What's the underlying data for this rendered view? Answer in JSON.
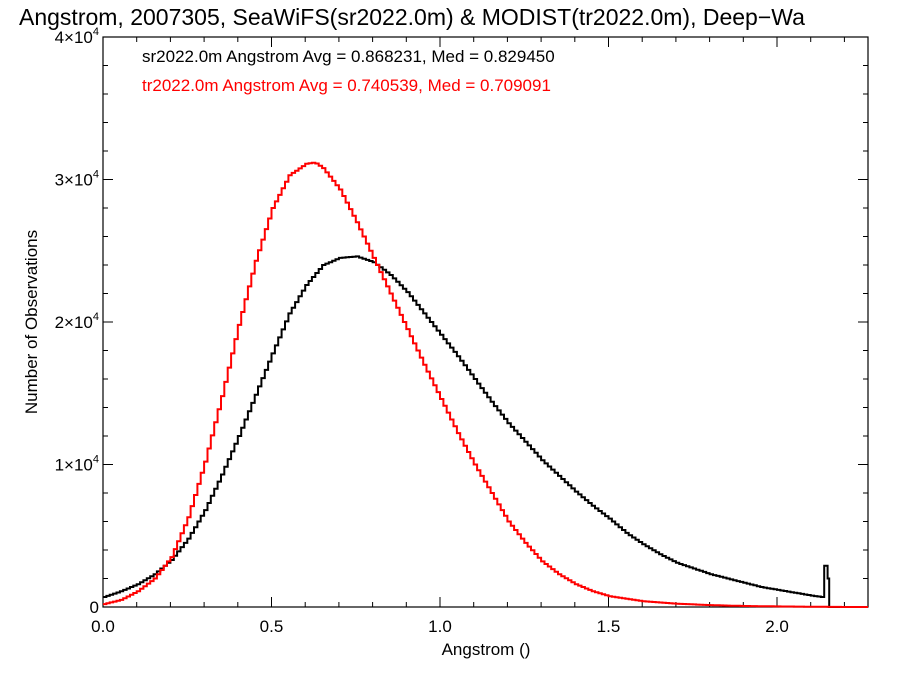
{
  "chart_data": {
    "type": "step",
    "title": "Angstrom, 2007305, SeaWiFS(sr2022.0m) & MODIST(tr2022.0m), Deep−Wa",
    "xlabel": "Angstrom ()",
    "ylabel": "Number of Observations",
    "xlim": [
      0.0,
      2.27
    ],
    "ylim": [
      0,
      40000
    ],
    "x_ticks": [
      {
        "value": 0.0,
        "label": "0.0"
      },
      {
        "value": 0.5,
        "label": "0.5"
      },
      {
        "value": 1.0,
        "label": "1.0"
      },
      {
        "value": 1.5,
        "label": "1.5"
      },
      {
        "value": 2.0,
        "label": "2.0"
      }
    ],
    "y_ticks": [
      {
        "value": 0,
        "base": "0",
        "exp": ""
      },
      {
        "value": 10000,
        "base": "1×10",
        "exp": "4"
      },
      {
        "value": 20000,
        "base": "2×10",
        "exp": "4"
      },
      {
        "value": 30000,
        "base": "3×10",
        "exp": "4"
      },
      {
        "value": 40000,
        "base": "4×10",
        "exp": "4"
      }
    ],
    "annotations": [
      {
        "text": "sr2022.0m Angstrom Avg = 0.868231, Med = 0.829450",
        "color": "#000000"
      },
      {
        "text": "tr2022.0m Angstrom Avg = 0.740539, Med = 0.709091",
        "color": "#ff0000"
      }
    ],
    "series": [
      {
        "color": "#000000",
        "x": [
          0.0,
          0.05,
          0.1,
          0.15,
          0.2,
          0.25,
          0.3,
          0.35,
          0.4,
          0.45,
          0.5,
          0.55,
          0.6,
          0.65,
          0.7,
          0.75,
          0.8,
          0.85,
          0.9,
          0.95,
          1.0,
          1.05,
          1.1,
          1.15,
          1.2,
          1.25,
          1.3,
          1.35,
          1.4,
          1.45,
          1.5,
          1.55,
          1.6,
          1.65,
          1.7,
          1.75,
          1.8,
          1.85,
          1.9,
          1.95,
          2.0,
          2.05,
          2.1,
          2.13,
          2.145,
          2.155
        ],
        "y": [
          700,
          1100,
          1600,
          2300,
          3300,
          4800,
          6800,
          9300,
          12000,
          14900,
          17800,
          20600,
          22600,
          24000,
          24500,
          24600,
          24200,
          23300,
          22100,
          20600,
          19100,
          17600,
          16000,
          14400,
          12900,
          11600,
          10300,
          9200,
          8100,
          7100,
          6200,
          5200,
          4400,
          3700,
          3100,
          2700,
          2300,
          2000,
          1700,
          1400,
          1200,
          1000,
          800,
          700,
          4000,
          0
        ]
      },
      {
        "color": "#ff0000",
        "x": [
          0.0,
          0.05,
          0.1,
          0.15,
          0.2,
          0.25,
          0.3,
          0.35,
          0.4,
          0.45,
          0.5,
          0.55,
          0.6,
          0.625,
          0.65,
          0.7,
          0.75,
          0.8,
          0.85,
          0.9,
          0.95,
          1.0,
          1.05,
          1.1,
          1.15,
          1.2,
          1.25,
          1.3,
          1.35,
          1.4,
          1.45,
          1.5,
          1.6,
          1.7,
          1.8,
          1.9,
          2.0,
          2.1,
          2.2
        ],
        "y": [
          200,
          500,
          1100,
          2000,
          3500,
          6300,
          10200,
          14800,
          19800,
          24300,
          28000,
          30300,
          31100,
          31200,
          30800,
          29300,
          27000,
          24500,
          22000,
          19500,
          17000,
          14600,
          12200,
          10000,
          8000,
          6000,
          4500,
          3200,
          2300,
          1600,
          1100,
          750,
          400,
          230,
          130,
          70,
          40,
          20,
          0
        ]
      }
    ],
    "grid": false,
    "legend": "top-left"
  }
}
